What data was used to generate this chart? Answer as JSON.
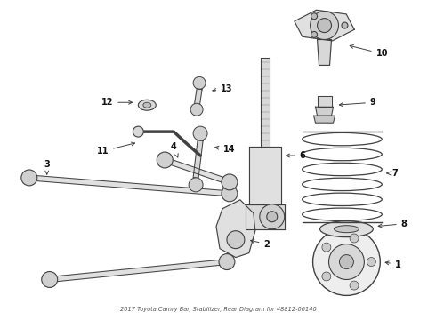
{
  "title": "2017 Toyota Camry Bar, Stabilizer, Rear Diagram for 48812-06140",
  "bg_color": "#ffffff",
  "fig_width": 4.9,
  "fig_height": 3.6,
  "dpi": 100,
  "line_color": "#404040",
  "label_color": "#111111",
  "label_fontsize": 7.0,
  "arrow_lw": 0.7
}
